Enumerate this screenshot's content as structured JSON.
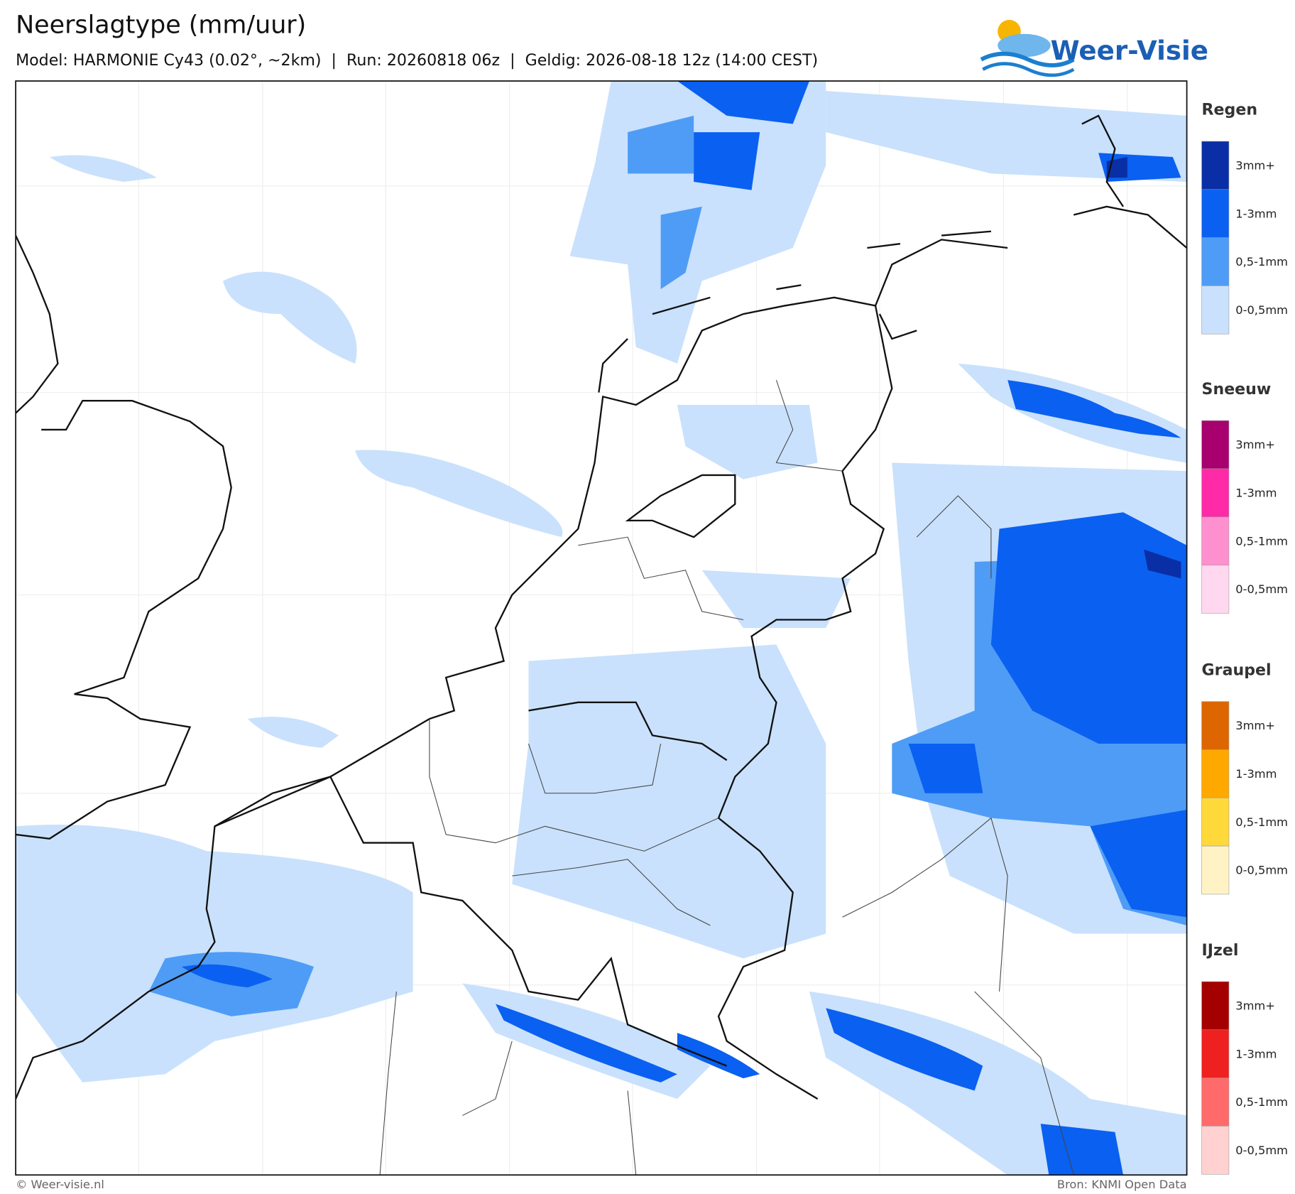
{
  "header": {
    "title": "Neerslagtype (mm/uur)",
    "subtitle": "Model: HARMONIE Cy43 (0.02°, ~2km)  |  Run: 20260818 06z  |  Geldig: 2026-08-18 12z (14:00 CEST)"
  },
  "logo": {
    "text": "Weer-Visie"
  },
  "legend": {
    "groups": [
      {
        "title": "Regen",
        "items": [
          {
            "label": "3mm+",
            "color": "#0a2ea6"
          },
          {
            "label": "1-3mm",
            "color": "#0a60f0"
          },
          {
            "label": "0,5-1mm",
            "color": "#4f9cf6"
          },
          {
            "label": "0-0,5mm",
            "color": "#c9e1fc"
          }
        ]
      },
      {
        "title": "Sneeuw",
        "items": [
          {
            "label": "3mm+",
            "color": "#a8006e"
          },
          {
            "label": "1-3mm",
            "color": "#ff2aa8"
          },
          {
            "label": "0,5-1mm",
            "color": "#ff90cf"
          },
          {
            "label": "0-0,5mm",
            "color": "#ffd7ef"
          }
        ]
      },
      {
        "title": "Graupel",
        "items": [
          {
            "label": "3mm+",
            "color": "#dd6600"
          },
          {
            "label": "1-3mm",
            "color": "#ffa800"
          },
          {
            "label": "0,5-1mm",
            "color": "#ffd83a"
          },
          {
            "label": "0-0,5mm",
            "color": "#fff3c6"
          }
        ]
      },
      {
        "title": "IJzel",
        "items": [
          {
            "label": "3mm+",
            "color": "#a50000"
          },
          {
            "label": "1-3mm",
            "color": "#ef2020"
          },
          {
            "label": "0,5-1mm",
            "color": "#ff6b6b"
          },
          {
            "label": "0-0,5mm",
            "color": "#ffd1d1"
          }
        ]
      }
    ]
  },
  "footer": {
    "left": "© Weer-visie.nl",
    "right": "Bron: KNMI Open Data"
  }
}
